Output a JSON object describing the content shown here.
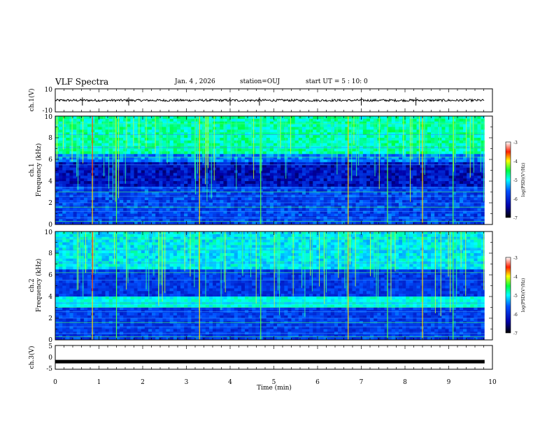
{
  "header": {
    "title": "VLF Spectra",
    "date": "Jan. 4 , 2026",
    "station": "station=OUJ",
    "start": "start UT =  5 : 10: 0"
  },
  "chart_data": [
    {
      "type": "line",
      "name": "ch1-waveform",
      "ylabel": "ch.1(V)",
      "ylim": [
        -10,
        10
      ],
      "ytick_labels": [
        "10",
        "-10"
      ],
      "baseline": 0,
      "noise_amplitude": 1,
      "spikes_x_min": [
        0.62,
        1.68,
        4.0,
        4.67,
        7.0,
        8.25
      ]
    },
    {
      "type": "heatmap",
      "name": "ch1-spectrogram",
      "ylabel": "ch.1\nFrequency (kHz)",
      "ylabel_line1": "ch.1",
      "ylabel_line2": "Frequency (kHz)",
      "ylim": [
        0,
        10
      ],
      "y_ticks": [
        "0",
        "2",
        "4",
        "6",
        "8",
        "10"
      ],
      "colorbar": {
        "label": "log(PSD)(V²/Hz)",
        "range": [
          -7,
          -3
        ],
        "ticks": [
          "-3",
          "-4",
          "-5",
          "-6",
          "-7"
        ]
      },
      "sferic_times_min": [
        0.85,
        1.4,
        3.3,
        4.7,
        6.7,
        7.6,
        8.4,
        9.1
      ],
      "noise_band_khz": [
        0,
        6
      ]
    },
    {
      "type": "heatmap",
      "name": "ch2-spectrogram",
      "ylabel": "ch.2\nFrequency (kHz)",
      "ylabel_line1": "ch.2",
      "ylabel_line2": "Frequency (kHz)",
      "ylim": [
        0,
        10
      ],
      "y_ticks": [
        "0",
        "2",
        "4",
        "6",
        "8",
        "10"
      ],
      "colorbar": {
        "label": "log(PSD)(V²/Hz)",
        "range": [
          -7,
          -3
        ],
        "ticks": [
          "-3",
          "-4",
          "-5",
          "-6",
          "-7"
        ]
      },
      "sferic_times_min": [
        0.85,
        1.4,
        3.3,
        4.7,
        6.7,
        7.6,
        8.4,
        9.1
      ],
      "enhanced_band_khz": [
        3,
        4
      ]
    },
    {
      "type": "line",
      "name": "ch3-waveform",
      "ylabel": "ch.3(V)",
      "ylim": [
        -5,
        5
      ],
      "ytick_labels": [
        "5",
        "0",
        "-5"
      ],
      "baseline": -1.8,
      "xlabel": "Time (min)",
      "xlim": [
        0,
        10
      ],
      "x_ticks": [
        "0",
        "1",
        "2",
        "3",
        "4",
        "5",
        "6",
        "7",
        "8",
        "9",
        "10"
      ],
      "data_end_min": 9.82
    }
  ]
}
